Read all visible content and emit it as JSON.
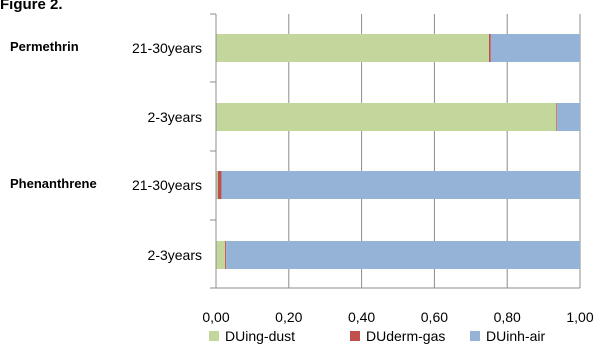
{
  "figure_label": "Figure 2.",
  "chart_data": {
    "type": "bar",
    "orientation": "horizontal",
    "stacked": true,
    "title": "",
    "xlabel": "",
    "ylabel": "",
    "xlim": [
      0,
      1
    ],
    "x_ticks": [
      "0,00",
      "0,20",
      "0,40",
      "0,60",
      "0,80",
      "1,00"
    ],
    "grid": true,
    "legend_position": "bottom",
    "groups": [
      {
        "label": "Permethrin",
        "categories": [
          "21-30years",
          "2-3years"
        ]
      },
      {
        "label": "Phenanthrene",
        "categories": [
          "21-30years",
          "2-3years"
        ]
      }
    ],
    "categories": [
      "21-30years",
      "2-3years",
      "21-30years",
      "2-3years"
    ],
    "series": [
      {
        "name": "DUing-dust",
        "color": "#c3d69b",
        "values": [
          0.75,
          0.935,
          0.005,
          0.025
        ]
      },
      {
        "name": "DUderm-gas",
        "color": "#c0504d",
        "values": [
          0.005,
          0.002,
          0.01,
          0.003
        ]
      },
      {
        "name": "DUinh-air",
        "color": "#95b3d7",
        "values": [
          0.245,
          0.063,
          0.985,
          0.972
        ]
      }
    ]
  }
}
